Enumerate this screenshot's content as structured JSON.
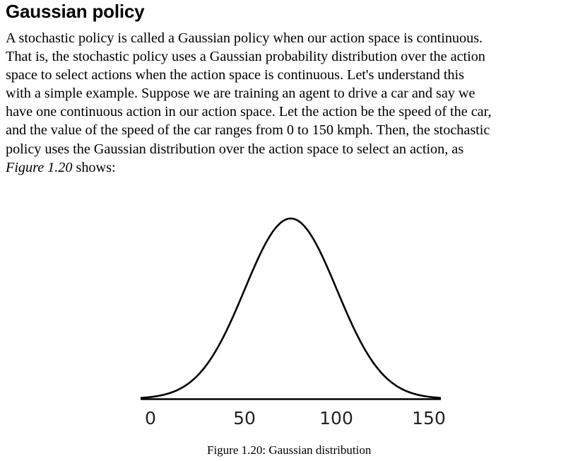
{
  "section": {
    "title": "Gaussian policy"
  },
  "paragraph": {
    "lines": [
      "A stochastic policy is called a Gaussian policy when our action space is continuous.",
      "That is, the stochastic policy uses a Gaussian probability distribution over the action",
      "space to select actions when the action space is continuous. Let's understand this",
      "with a simple example. Suppose we are training an agent to drive a car and say we",
      "have one continuous action in our action space. Let the action be the speed of the car,",
      "and the value of the speed of the car ranges from 0 to 150 kmph. Then, the stochastic",
      "policy uses the Gaussian distribution over the action space to select an action, as"
    ],
    "last_line_ref": "Figure 1.20",
    "last_line_rest": " shows:"
  },
  "figure": {
    "caption": "Figure 1.20: Gaussian distribution"
  },
  "chart_data": {
    "type": "line",
    "title": "",
    "xlabel": "",
    "ylabel": "",
    "xlim": [
      0,
      150
    ],
    "x_ticks": [
      0,
      50,
      100,
      150
    ],
    "tick_labels": [
      "0",
      "50",
      "100",
      "150"
    ],
    "grid": false,
    "legend": "none",
    "series": [
      {
        "curve": "gaussian",
        "mean": 75,
        "std_dev": 23,
        "color": "#000000"
      }
    ]
  }
}
